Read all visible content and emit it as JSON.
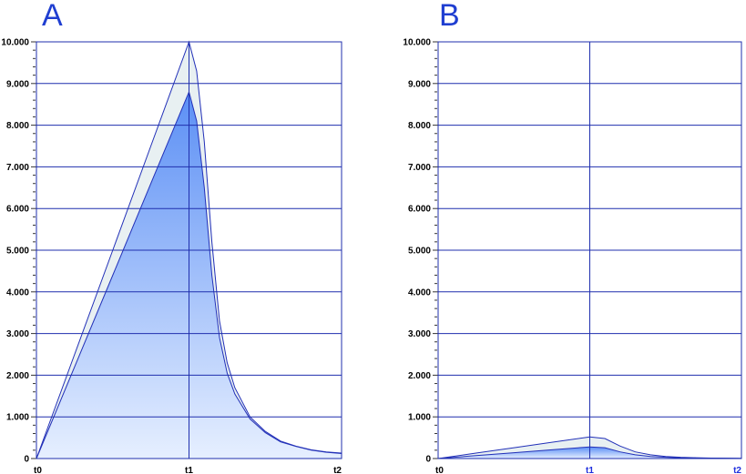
{
  "colors": {
    "grid": "#1f2fae",
    "axis": "#1f2fae",
    "fill_top": "#5b8ff5",
    "fill_bottom": "#e6efff",
    "envelope_fill": "#e8f0f2",
    "envelope_line": "#2230b8",
    "letter": "#1f3ed1",
    "highlight_label": "#1f2fdd"
  },
  "chart_data": [
    {
      "panel": "A",
      "type": "area",
      "x_ticks": [
        "t0",
        "t1",
        "t2"
      ],
      "x_highlight": [],
      "ylim": [
        0,
        10000
      ],
      "y_ticks": [
        "0",
        "1.000",
        "2.000",
        "3.000",
        "4.000",
        "5.000",
        "6.000",
        "7.000",
        "8.000",
        "9.000",
        "10.000"
      ],
      "grid": true,
      "series": [
        {
          "role": "envelope",
          "x": [
            0,
            0.25,
            0.5,
            0.75,
            1.0,
            1.05,
            1.1,
            1.15,
            1.2,
            1.25,
            1.3,
            1.4,
            1.5,
            1.6,
            1.7,
            1.8,
            1.9,
            2.0
          ],
          "values": [
            0,
            2500,
            5000,
            7500,
            10000,
            9300,
            7600,
            5200,
            3300,
            2300,
            1700,
            1000,
            650,
            420,
            300,
            210,
            160,
            130
          ]
        },
        {
          "role": "filled",
          "x": [
            0,
            0.25,
            0.5,
            0.75,
            1.0,
            1.05,
            1.1,
            1.15,
            1.2,
            1.25,
            1.3,
            1.4,
            1.5,
            1.6,
            1.7,
            1.8,
            1.9,
            2.0
          ],
          "values": [
            0,
            2200,
            4400,
            6600,
            8800,
            8100,
            6500,
            4400,
            2900,
            2050,
            1550,
            950,
            620,
            400,
            290,
            200,
            150,
            120
          ]
        }
      ]
    },
    {
      "panel": "B",
      "type": "area",
      "x_ticks": [
        "t0",
        "t1",
        "t2"
      ],
      "x_highlight": [
        "t1",
        "t2"
      ],
      "ylim": [
        0,
        10000
      ],
      "y_ticks": [
        "0",
        "1.000",
        "2.000",
        "3.000",
        "4.000",
        "5.000",
        "6.000",
        "7.000",
        "8.000",
        "9.000",
        "10.000"
      ],
      "grid": true,
      "series": [
        {
          "role": "envelope",
          "x": [
            0,
            0.25,
            0.5,
            0.75,
            1.0,
            1.1,
            1.2,
            1.3,
            1.4,
            1.5,
            1.6,
            1.7,
            1.8,
            1.9,
            2.0
          ],
          "values": [
            0,
            130,
            260,
            390,
            520,
            480,
            300,
            160,
            90,
            50,
            30,
            20,
            12,
            8,
            5
          ]
        },
        {
          "role": "filled",
          "x": [
            0,
            0.25,
            0.5,
            0.75,
            1.0,
            1.1,
            1.2,
            1.3,
            1.4,
            1.5,
            1.6,
            1.7,
            1.8,
            1.9,
            2.0
          ],
          "values": [
            0,
            70,
            140,
            210,
            280,
            260,
            160,
            90,
            50,
            30,
            18,
            12,
            8,
            5,
            3
          ]
        }
      ]
    }
  ]
}
